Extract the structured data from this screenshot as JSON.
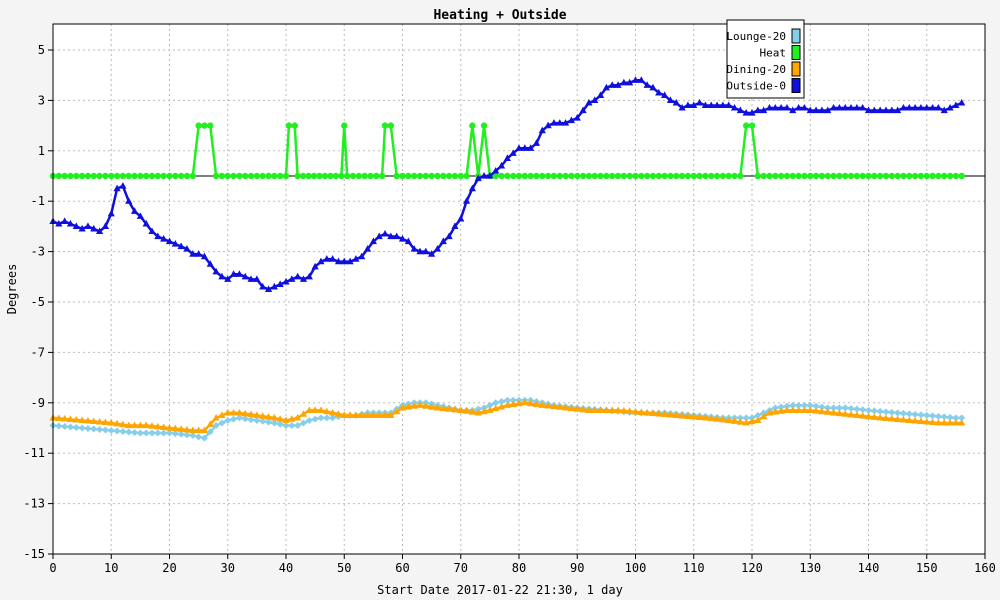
{
  "chart_data": {
    "type": "line",
    "title": "Heating + Outside",
    "xlabel": "Start Date 2017-01-22 21:30, 1 day",
    "ylabel": "Degrees",
    "xlim": [
      0,
      160
    ],
    "ylim": [
      -15,
      6
    ],
    "xticks": [
      0,
      10,
      20,
      30,
      40,
      50,
      60,
      70,
      80,
      90,
      100,
      110,
      120,
      130,
      140,
      150,
      160
    ],
    "yticks": [
      5,
      3,
      1,
      -1,
      -3,
      -5,
      -7,
      -9,
      -11,
      -13,
      -15
    ],
    "grid": true,
    "legend_position": "top-right",
    "series": [
      {
        "name": "Lounge-20",
        "color": "#87ceeb",
        "marker": "diamond",
        "points": [
          [
            0,
            -9.9
          ],
          [
            5,
            -10.0
          ],
          [
            10,
            -10.1
          ],
          [
            15,
            -10.2
          ],
          [
            20,
            -10.2
          ],
          [
            24,
            -10.3
          ],
          [
            26,
            -10.4
          ],
          [
            28,
            -9.9
          ],
          [
            30,
            -9.7
          ],
          [
            32,
            -9.6
          ],
          [
            35,
            -9.7
          ],
          [
            38,
            -9.8
          ],
          [
            40,
            -9.9
          ],
          [
            42,
            -9.9
          ],
          [
            44,
            -9.7
          ],
          [
            46,
            -9.6
          ],
          [
            48,
            -9.6
          ],
          [
            50,
            -9.5
          ],
          [
            52,
            -9.5
          ],
          [
            54,
            -9.4
          ],
          [
            56,
            -9.4
          ],
          [
            58,
            -9.4
          ],
          [
            60,
            -9.1
          ],
          [
            62,
            -9.0
          ],
          [
            64,
            -9.0
          ],
          [
            66,
            -9.1
          ],
          [
            68,
            -9.2
          ],
          [
            70,
            -9.3
          ],
          [
            72,
            -9.3
          ],
          [
            74,
            -9.2
          ],
          [
            76,
            -9.0
          ],
          [
            78,
            -8.9
          ],
          [
            80,
            -8.9
          ],
          [
            82,
            -8.9
          ],
          [
            84,
            -9.0
          ],
          [
            86,
            -9.1
          ],
          [
            90,
            -9.2
          ],
          [
            95,
            -9.3
          ],
          [
            100,
            -9.4
          ],
          [
            105,
            -9.4
          ],
          [
            110,
            -9.5
          ],
          [
            115,
            -9.6
          ],
          [
            118,
            -9.6
          ],
          [
            120,
            -9.6
          ],
          [
            122,
            -9.4
          ],
          [
            124,
            -9.2
          ],
          [
            127,
            -9.1
          ],
          [
            130,
            -9.1
          ],
          [
            133,
            -9.2
          ],
          [
            136,
            -9.2
          ],
          [
            140,
            -9.3
          ],
          [
            145,
            -9.4
          ],
          [
            150,
            -9.5
          ],
          [
            155,
            -9.6
          ],
          [
            156,
            -9.6
          ]
        ]
      },
      {
        "name": "Heat",
        "color": "#22ee22",
        "marker": "circle",
        "points": [
          [
            0,
            0
          ],
          [
            24,
            0
          ],
          [
            25,
            2
          ],
          [
            27,
            2
          ],
          [
            28,
            0
          ],
          [
            40,
            0
          ],
          [
            40.5,
            2
          ],
          [
            41.5,
            2
          ],
          [
            42,
            0
          ],
          [
            49.5,
            0
          ],
          [
            50,
            2
          ],
          [
            50.5,
            0
          ],
          [
            56.5,
            0
          ],
          [
            57,
            2
          ],
          [
            58,
            2
          ],
          [
            59,
            0
          ],
          [
            71,
            0
          ],
          [
            72,
            2
          ],
          [
            73,
            0
          ],
          [
            74,
            2
          ],
          [
            75,
            0
          ],
          [
            118,
            0
          ],
          [
            119,
            2
          ],
          [
            120,
            2
          ],
          [
            121,
            0
          ],
          [
            156,
            0
          ]
        ]
      },
      {
        "name": "Dining-20",
        "color": "#ffa500",
        "marker": "triangle",
        "points": [
          [
            0,
            -9.6
          ],
          [
            5,
            -9.7
          ],
          [
            10,
            -9.8
          ],
          [
            13,
            -9.9
          ],
          [
            16,
            -9.9
          ],
          [
            20,
            -10.0
          ],
          [
            24,
            -10.1
          ],
          [
            26,
            -10.1
          ],
          [
            28,
            -9.6
          ],
          [
            30,
            -9.4
          ],
          [
            32,
            -9.4
          ],
          [
            35,
            -9.5
          ],
          [
            38,
            -9.6
          ],
          [
            40,
            -9.7
          ],
          [
            42,
            -9.6
          ],
          [
            44,
            -9.3
          ],
          [
            46,
            -9.3
          ],
          [
            48,
            -9.4
          ],
          [
            50,
            -9.5
          ],
          [
            53,
            -9.5
          ],
          [
            56,
            -9.5
          ],
          [
            58,
            -9.5
          ],
          [
            60,
            -9.2
          ],
          [
            63,
            -9.1
          ],
          [
            66,
            -9.2
          ],
          [
            70,
            -9.3
          ],
          [
            73,
            -9.4
          ],
          [
            75,
            -9.3
          ],
          [
            78,
            -9.1
          ],
          [
            81,
            -9.0
          ],
          [
            84,
            -9.1
          ],
          [
            88,
            -9.2
          ],
          [
            92,
            -9.3
          ],
          [
            97,
            -9.3
          ],
          [
            102,
            -9.4
          ],
          [
            107,
            -9.5
          ],
          [
            112,
            -9.6
          ],
          [
            116,
            -9.7
          ],
          [
            119,
            -9.8
          ],
          [
            121,
            -9.7
          ],
          [
            123,
            -9.4
          ],
          [
            126,
            -9.3
          ],
          [
            130,
            -9.3
          ],
          [
            134,
            -9.4
          ],
          [
            138,
            -9.5
          ],
          [
            142,
            -9.6
          ],
          [
            147,
            -9.7
          ],
          [
            152,
            -9.8
          ],
          [
            156,
            -9.8
          ]
        ]
      },
      {
        "name": "Outside-0",
        "color": "#1010dd",
        "marker": "triangle",
        "points": [
          [
            0,
            -1.8
          ],
          [
            1,
            -1.9
          ],
          [
            2,
            -1.8
          ],
          [
            3,
            -1.9
          ],
          [
            4,
            -2.0
          ],
          [
            5,
            -2.1
          ],
          [
            6,
            -2.0
          ],
          [
            7,
            -2.1
          ],
          [
            8,
            -2.2
          ],
          [
            9,
            -2.0
          ],
          [
            10,
            -1.5
          ],
          [
            11,
            -0.5
          ],
          [
            12,
            -0.4
          ],
          [
            13,
            -1.0
          ],
          [
            14,
            -1.4
          ],
          [
            15,
            -1.6
          ],
          [
            16,
            -1.9
          ],
          [
            17,
            -2.2
          ],
          [
            18,
            -2.4
          ],
          [
            19,
            -2.5
          ],
          [
            20,
            -2.6
          ],
          [
            21,
            -2.7
          ],
          [
            22,
            -2.8
          ],
          [
            23,
            -2.9
          ],
          [
            24,
            -3.1
          ],
          [
            25,
            -3.1
          ],
          [
            26,
            -3.2
          ],
          [
            27,
            -3.5
          ],
          [
            28,
            -3.8
          ],
          [
            29,
            -4.0
          ],
          [
            30,
            -4.1
          ],
          [
            31,
            -3.9
          ],
          [
            32,
            -3.9
          ],
          [
            33,
            -4.0
          ],
          [
            34,
            -4.1
          ],
          [
            35,
            -4.1
          ],
          [
            36,
            -4.4
          ],
          [
            37,
            -4.5
          ],
          [
            38,
            -4.4
          ],
          [
            39,
            -4.3
          ],
          [
            40,
            -4.2
          ],
          [
            41,
            -4.1
          ],
          [
            42,
            -4.0
          ],
          [
            43,
            -4.1
          ],
          [
            44,
            -4.0
          ],
          [
            45,
            -3.6
          ],
          [
            46,
            -3.4
          ],
          [
            47,
            -3.3
          ],
          [
            48,
            -3.3
          ],
          [
            49,
            -3.4
          ],
          [
            50,
            -3.4
          ],
          [
            51,
            -3.4
          ],
          [
            52,
            -3.3
          ],
          [
            53,
            -3.2
          ],
          [
            54,
            -2.9
          ],
          [
            55,
            -2.6
          ],
          [
            56,
            -2.4
          ],
          [
            57,
            -2.3
          ],
          [
            58,
            -2.4
          ],
          [
            59,
            -2.4
          ],
          [
            60,
            -2.5
          ],
          [
            61,
            -2.6
          ],
          [
            62,
            -2.9
          ],
          [
            63,
            -3.0
          ],
          [
            64,
            -3.0
          ],
          [
            65,
            -3.1
          ],
          [
            66,
            -2.9
          ],
          [
            67,
            -2.6
          ],
          [
            68,
            -2.4
          ],
          [
            69,
            -2.0
          ],
          [
            70,
            -1.7
          ],
          [
            71,
            -1.0
          ],
          [
            72,
            -0.5
          ],
          [
            73,
            -0.1
          ],
          [
            74,
            0.0
          ],
          [
            75,
            0.0
          ],
          [
            76,
            0.2
          ],
          [
            77,
            0.4
          ],
          [
            78,
            0.7
          ],
          [
            79,
            0.9
          ],
          [
            80,
            1.1
          ],
          [
            81,
            1.1
          ],
          [
            82,
            1.1
          ],
          [
            83,
            1.3
          ],
          [
            84,
            1.8
          ],
          [
            85,
            2.0
          ],
          [
            86,
            2.1
          ],
          [
            87,
            2.1
          ],
          [
            88,
            2.1
          ],
          [
            89,
            2.2
          ],
          [
            90,
            2.3
          ],
          [
            91,
            2.6
          ],
          [
            92,
            2.9
          ],
          [
            93,
            3.0
          ],
          [
            94,
            3.2
          ],
          [
            95,
            3.5
          ],
          [
            96,
            3.6
          ],
          [
            97,
            3.6
          ],
          [
            98,
            3.7
          ],
          [
            99,
            3.7
          ],
          [
            100,
            3.8
          ],
          [
            101,
            3.8
          ],
          [
            102,
            3.6
          ],
          [
            103,
            3.5
          ],
          [
            104,
            3.3
          ],
          [
            105,
            3.2
          ],
          [
            106,
            3.0
          ],
          [
            107,
            2.9
          ],
          [
            108,
            2.7
          ],
          [
            109,
            2.8
          ],
          [
            110,
            2.8
          ],
          [
            111,
            2.9
          ],
          [
            112,
            2.8
          ],
          [
            113,
            2.8
          ],
          [
            114,
            2.8
          ],
          [
            115,
            2.8
          ],
          [
            116,
            2.8
          ],
          [
            117,
            2.7
          ],
          [
            118,
            2.6
          ],
          [
            119,
            2.5
          ],
          [
            120,
            2.5
          ],
          [
            121,
            2.6
          ],
          [
            122,
            2.6
          ],
          [
            123,
            2.7
          ],
          [
            124,
            2.7
          ],
          [
            125,
            2.7
          ],
          [
            126,
            2.7
          ],
          [
            127,
            2.6
          ],
          [
            128,
            2.7
          ],
          [
            129,
            2.7
          ],
          [
            130,
            2.6
          ],
          [
            131,
            2.6
          ],
          [
            132,
            2.6
          ],
          [
            133,
            2.6
          ],
          [
            134,
            2.7
          ],
          [
            135,
            2.7
          ],
          [
            136,
            2.7
          ],
          [
            137,
            2.7
          ],
          [
            138,
            2.7
          ],
          [
            139,
            2.7
          ],
          [
            140,
            2.6
          ],
          [
            141,
            2.6
          ],
          [
            142,
            2.6
          ],
          [
            143,
            2.6
          ],
          [
            144,
            2.6
          ],
          [
            145,
            2.6
          ],
          [
            146,
            2.7
          ],
          [
            147,
            2.7
          ],
          [
            148,
            2.7
          ],
          [
            149,
            2.7
          ],
          [
            150,
            2.7
          ],
          [
            151,
            2.7
          ],
          [
            152,
            2.7
          ],
          [
            153,
            2.6
          ],
          [
            154,
            2.7
          ],
          [
            155,
            2.8
          ],
          [
            156,
            2.9
          ]
        ]
      }
    ]
  }
}
